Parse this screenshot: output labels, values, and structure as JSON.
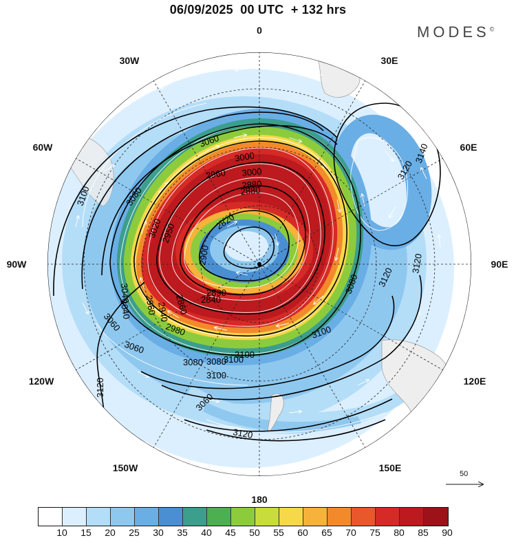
{
  "header": {
    "title": "06/09/2025  00 UTC  + 132 hrs",
    "brand": "MODES",
    "brand_mark": "©"
  },
  "map": {
    "projection": "south-polar-stereographic",
    "field_filled": "wind speed",
    "field_contour": "geopotential height",
    "longitude_labels": [
      "0",
      "30E",
      "60E",
      "90E",
      "120E",
      "150E",
      "180",
      "150W",
      "120W",
      "90W",
      "60W",
      "30W"
    ],
    "contour_labels": [
      "3060",
      "3080",
      "3100",
      "3120",
      "3140",
      "3120",
      "3120",
      "3120",
      "3100",
      "3080",
      "3060",
      "3040",
      "3020",
      "3000",
      "2960",
      "2900",
      "2820",
      "2840",
      "2860",
      "2880",
      "3100",
      "3080",
      "3060",
      "3120",
      "3100",
      "3000",
      "2980",
      "2940",
      "2880",
      "2890",
      "2960",
      "2950",
      "3040",
      "3060",
      "3080",
      "3100"
    ],
    "vector_scale_label": "50"
  },
  "colorbar": {
    "colors": [
      "#ffffff",
      "#dcefff",
      "#b4ddf8",
      "#8fc8ef",
      "#6aaee6",
      "#4a8fd2",
      "#3c9e8c",
      "#4cb050",
      "#8ccc3c",
      "#c8dc3c",
      "#f6d84a",
      "#f6b23a",
      "#f28a2c",
      "#e8582a",
      "#d62a26",
      "#bc1a1e",
      "#9c1218"
    ],
    "tick_labels": [
      "10",
      "15",
      "20",
      "25",
      "30",
      "35",
      "40",
      "45",
      "50",
      "55",
      "60",
      "65",
      "70",
      "75",
      "80",
      "85",
      "90"
    ]
  }
}
